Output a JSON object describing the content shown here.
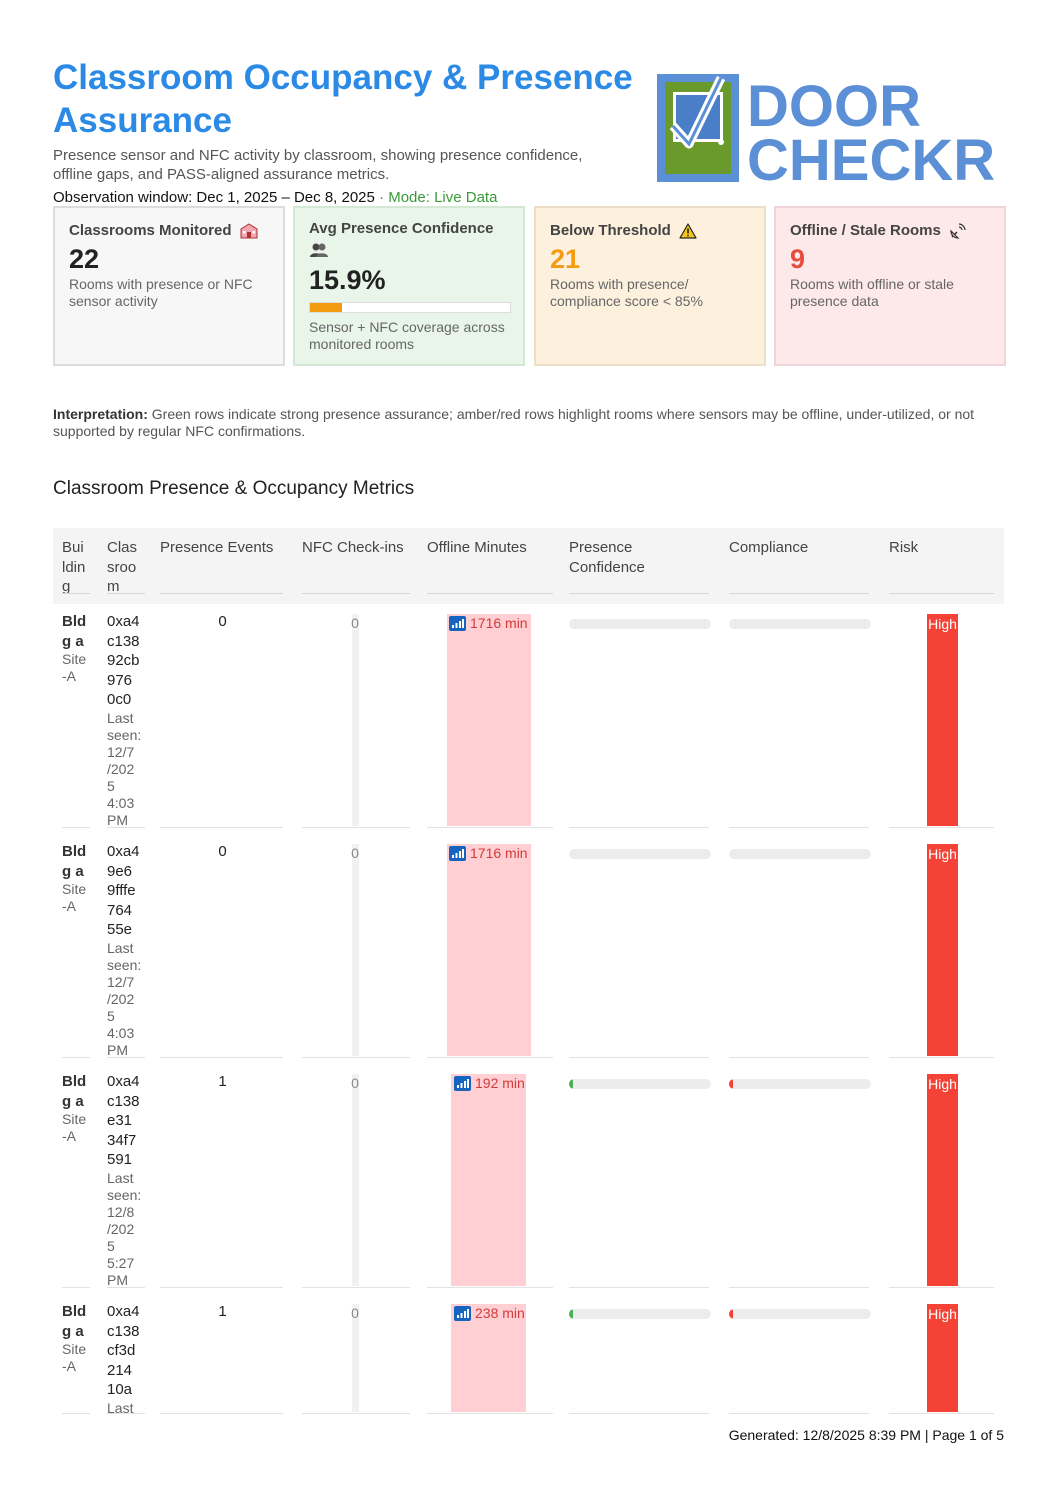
{
  "header": {
    "title": "Classroom Occupancy & Presence Assurance",
    "subtitle": "Presence sensor and NFC activity by classroom, showing presence confidence, offline gaps, and PASS-aligned assurance metrics.",
    "observation_label": "Observation window:",
    "observation_range": "Dec 1, 2025 – Dec 8, 2025",
    "separator": " · ",
    "mode": "Mode: Live Data"
  },
  "logo": {
    "line1": "DOOR",
    "line2": "CHECKR",
    "icon": "door-checkmark-logo",
    "colors": {
      "blue": "#5b8fd6",
      "green": "#6a9a2c"
    }
  },
  "cards": {
    "monitored": {
      "label": "Classrooms Monitored",
      "icon": "school-icon",
      "value": "22",
      "desc": "Rooms with presence or NFC sensor activity"
    },
    "confidence": {
      "label": "Avg Presence Confidence",
      "icon": "people-icon",
      "value": "15.9%",
      "fill": 0.159,
      "desc": "Sensor + NFC coverage across monitored rooms"
    },
    "below": {
      "label": "Below Threshold",
      "icon": "warning-icon",
      "value": "21",
      "desc": "Rooms with presence/ compliance score < 85%"
    },
    "offline": {
      "label": "Offline / Stale Rooms",
      "icon": "satellite-icon",
      "value": "9",
      "desc": "Rooms with offline or stale presence data"
    }
  },
  "interpretation": {
    "label": "Interpretation:",
    "text": " Green rows indicate strong presence assurance; amber/red rows highlight rooms where sensors may be offline, under-utilized, or not supported by regular NFC confirmations."
  },
  "section_title": "Classroom Presence & Occupancy Metrics",
  "table": {
    "headers": [
      "Bui\nldin\ng",
      "Clas\nsroo\nm",
      "Presence Events",
      "NFC Check-ins",
      "Offline Minutes",
      "Presence\nConfidence",
      "Compliance",
      "Risk"
    ],
    "rows": [
      {
        "bld": "Bld\ng a",
        "site": "Site\n-A",
        "id": "0xa4\nc138\n92cb\n976\n0c0",
        "seen": "Last\nseen:\n12/7\n/202\n5\n4:03\nPM",
        "events": "0",
        "nfc": "0",
        "offline": "1716 min",
        "conf": 0,
        "comp": 0,
        "risk": "High"
      },
      {
        "bld": "Bld\ng a",
        "site": "Site\n-A",
        "id": "0xa4\n9e6\n9fffe\n764\n55e",
        "seen": "Last\nseen:\n12/7\n/202\n5\n4:03\nPM",
        "events": "0",
        "nfc": "0",
        "offline": "1716 min",
        "conf": 0,
        "comp": 0,
        "risk": "High"
      },
      {
        "bld": "Bld\ng a",
        "site": "Site\n-A",
        "id": "0xa4\nc138\ne31\n34f7\n591",
        "seen": "Last\nseen:\n12/8\n/202\n5\n5:27\nPM",
        "events": "1",
        "nfc": "0",
        "offline": "192 min",
        "conf": 0.02,
        "comp": 0.02,
        "risk": "High"
      },
      {
        "bld": "Bld\ng a",
        "site": "Site\n-A",
        "id": "0xa4\nc138\ncf3d\n214\n10a",
        "seen": "Last",
        "events": "1",
        "nfc": "0",
        "offline": "238 min",
        "conf": 0.02,
        "comp": 0.02,
        "risk": "High"
      }
    ]
  },
  "colors": {
    "title": "#2a8ae6",
    "mode": "#3a9a3a",
    "amber": "#f39c12",
    "red": "#e74c3c",
    "risk": "#f44336",
    "offline_bar": "#ffcfd3",
    "conf_ok": "#4caf50",
    "comp_bad": "#f44336"
  },
  "footer": "Generated: 12/8/2025 8:39 PM | Page 1 of 5"
}
